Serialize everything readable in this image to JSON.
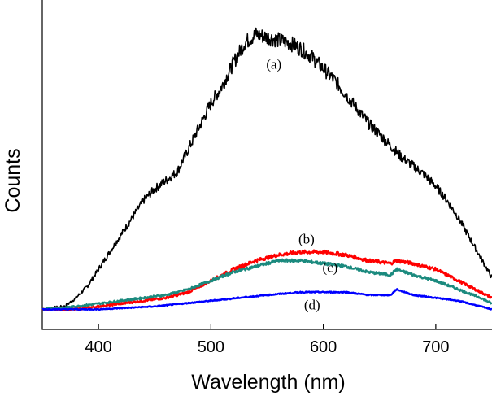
{
  "chart_data": {
    "type": "line",
    "title": "",
    "xlabel": "Wavelength (nm)",
    "ylabel": "Counts",
    "xlim": [
      350,
      750
    ],
    "ylim": [
      -0.07,
      1.08
    ],
    "xticks": [
      400,
      500,
      600,
      700
    ],
    "yticks_shown": false,
    "series": [
      {
        "name": "(a)",
        "color": "#000000",
        "x": [
          350,
          370,
          380,
          390,
          400,
          410,
          420,
          430,
          440,
          450,
          460,
          470,
          480,
          490,
          500,
          510,
          520,
          530,
          540,
          550,
          560,
          570,
          580,
          590,
          600,
          610,
          620,
          630,
          640,
          650,
          660,
          670,
          680,
          690,
          700,
          710,
          720,
          730,
          740,
          750
        ],
        "y": [
          0.0,
          0.01,
          0.04,
          0.08,
          0.14,
          0.2,
          0.26,
          0.32,
          0.38,
          0.42,
          0.45,
          0.48,
          0.56,
          0.64,
          0.72,
          0.78,
          0.86,
          0.93,
          0.96,
          0.95,
          0.94,
          0.93,
          0.91,
          0.88,
          0.84,
          0.8,
          0.75,
          0.7,
          0.65,
          0.61,
          0.57,
          0.53,
          0.5,
          0.47,
          0.43,
          0.38,
          0.32,
          0.25,
          0.18,
          0.11
        ]
      },
      {
        "name": "(b)",
        "color": "#ff0000",
        "x": [
          350,
          380,
          400,
          420,
          440,
          460,
          480,
          500,
          520,
          540,
          560,
          580,
          600,
          620,
          640,
          660,
          665,
          680,
          700,
          720,
          740,
          750
        ],
        "y": [
          0.0,
          0.0,
          0.01,
          0.02,
          0.03,
          0.04,
          0.06,
          0.1,
          0.14,
          0.17,
          0.19,
          0.2,
          0.2,
          0.19,
          0.17,
          0.16,
          0.17,
          0.16,
          0.14,
          0.1,
          0.06,
          0.04
        ]
      },
      {
        "name": "(c)",
        "color": "#1b8a7e",
        "x": [
          350,
          380,
          400,
          420,
          440,
          460,
          480,
          500,
          520,
          540,
          560,
          580,
          600,
          620,
          640,
          660,
          665,
          680,
          700,
          720,
          740,
          750
        ],
        "y": [
          0.0,
          0.01,
          0.02,
          0.03,
          0.04,
          0.05,
          0.07,
          0.1,
          0.13,
          0.15,
          0.17,
          0.17,
          0.16,
          0.15,
          0.13,
          0.12,
          0.14,
          0.12,
          0.1,
          0.07,
          0.04,
          0.02
        ]
      },
      {
        "name": "(d)",
        "color": "#0000ff",
        "x": [
          350,
          400,
          450,
          500,
          550,
          580,
          600,
          620,
          640,
          660,
          665,
          680,
          700,
          720,
          740,
          750
        ],
        "y": [
          0.0,
          0.0,
          0.01,
          0.03,
          0.05,
          0.06,
          0.06,
          0.06,
          0.05,
          0.05,
          0.07,
          0.05,
          0.04,
          0.03,
          0.01,
          0.0
        ]
      }
    ],
    "annotations": [
      {
        "text": "(a)",
        "x": 556,
        "y": 0.84
      },
      {
        "text": "(b)",
        "x": 585,
        "y": 0.23
      },
      {
        "text": "(c)",
        "x": 606,
        "y": 0.13
      },
      {
        "text": "(d)",
        "x": 590,
        "y": 0.0
      }
    ]
  }
}
